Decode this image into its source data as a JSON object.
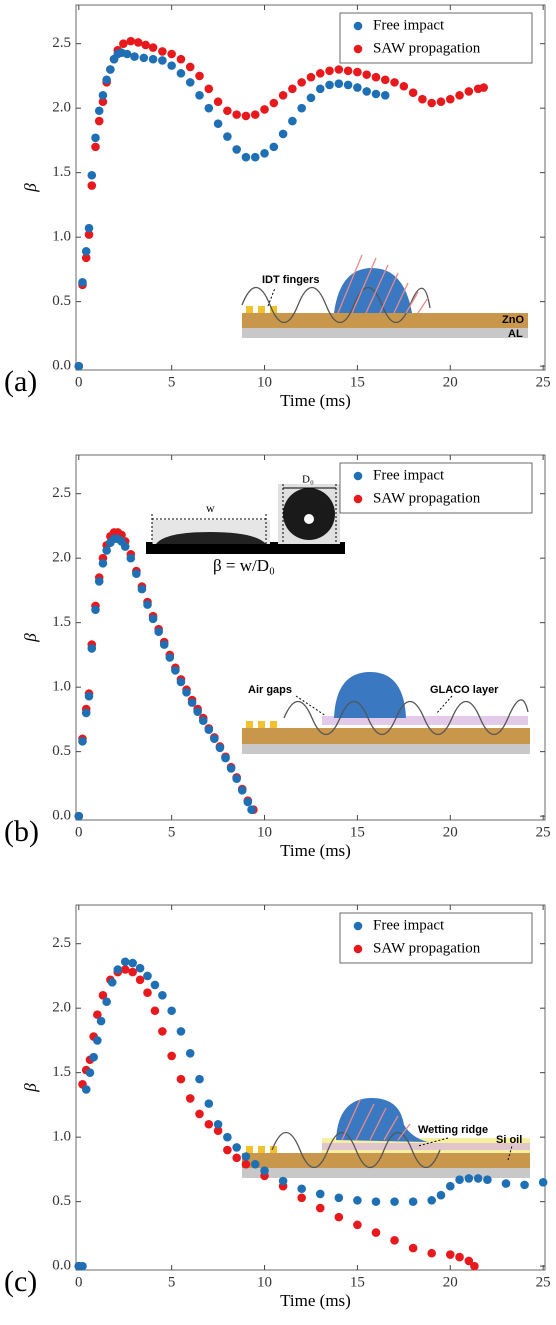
{
  "chart_data": [
    {
      "type": "scatter",
      "panel_label": "(a)",
      "x_label": "Time (ms)",
      "y_label": "β",
      "xlim": [
        -0.15,
        25.1
      ],
      "ylim": [
        -0.03,
        2.8
      ],
      "xticks": [
        0,
        5,
        10,
        15,
        20,
        25
      ],
      "yticks": [
        {
          "value": 0,
          "label": "0.0"
        },
        0.5,
        {
          "value": 1,
          "label": "1.0"
        },
        1.5,
        {
          "value": 2,
          "label": "2.0"
        },
        2.5
      ],
      "legend": "upper right",
      "annotations": [
        "IDT fingers",
        "ZnO",
        "AL"
      ],
      "series": [
        {
          "name": "Free impact",
          "color": "#1f6fb4",
          "x": [
            0,
            0.2,
            0.4,
            0.55,
            0.7,
            0.9,
            1.1,
            1.3,
            1.5,
            1.7,
            1.9,
            2.1,
            2.3,
            2.6,
            3,
            3.5,
            4,
            4.5,
            5,
            5.5,
            6,
            6.5,
            7,
            7.5,
            8,
            8.5,
            9,
            9.5,
            10,
            10.5,
            11,
            11.5,
            12,
            12.5,
            13,
            13.5,
            14,
            14.5,
            15,
            15.5,
            16,
            16.5
          ],
          "values": [
            0,
            0.65,
            0.89,
            1.07,
            1.48,
            1.77,
            1.98,
            2.1,
            2.22,
            2.3,
            2.38,
            2.42,
            2.43,
            2.42,
            2.4,
            2.39,
            2.38,
            2.37,
            2.33,
            2.27,
            2.2,
            2.1,
            2.0,
            1.88,
            1.78,
            1.68,
            1.62,
            1.62,
            1.65,
            1.7,
            1.8,
            1.9,
            2.0,
            2.08,
            2.15,
            2.18,
            2.19,
            2.18,
            2.16,
            2.13,
            2.11,
            2.1
          ]
        },
        {
          "name": "SAW propagation",
          "color": "#e8191c",
          "x": [
            0,
            0.2,
            0.4,
            0.55,
            0.7,
            0.9,
            1.1,
            1.3,
            1.5,
            1.7,
            1.9,
            2.1,
            2.4,
            2.8,
            3.2,
            3.6,
            4,
            4.5,
            5,
            5.5,
            6,
            6.5,
            7,
            7.5,
            8,
            8.5,
            9,
            9.5,
            10,
            10.5,
            11,
            11.5,
            12,
            12.5,
            13,
            13.5,
            14,
            14.5,
            15,
            15.5,
            16,
            16.5,
            17,
            17.5,
            18,
            18.5,
            19,
            19.5,
            20,
            20.5,
            21,
            21.5,
            21.8
          ],
          "values": [
            0,
            0.63,
            0.84,
            1.02,
            1.4,
            1.7,
            1.9,
            2.05,
            2.2,
            2.3,
            2.38,
            2.45,
            2.5,
            2.52,
            2.51,
            2.49,
            2.47,
            2.44,
            2.42,
            2.38,
            2.32,
            2.25,
            2.15,
            2.05,
            1.98,
            1.95,
            1.94,
            1.95,
            1.99,
            2.04,
            2.1,
            2.15,
            2.2,
            2.24,
            2.27,
            2.29,
            2.3,
            2.29,
            2.28,
            2.26,
            2.24,
            2.22,
            2.2,
            2.17,
            2.12,
            2.07,
            2.04,
            2.05,
            2.07,
            2.1,
            2.13,
            2.15,
            2.16
          ]
        }
      ]
    },
    {
      "type": "scatter",
      "panel_label": "(b)",
      "x_label": "Time (ms)",
      "y_label": "β",
      "xlim": [
        -0.15,
        25.1
      ],
      "ylim": [
        -0.03,
        2.8
      ],
      "xticks": [
        0,
        5,
        10,
        15,
        20,
        25
      ],
      "yticks": [
        {
          "value": 0,
          "label": "0.0"
        },
        0.5,
        {
          "value": 1,
          "label": "1.0"
        },
        1.5,
        {
          "value": 2,
          "label": "2.0"
        },
        2.5
      ],
      "legend": "upper right",
      "annotations": [
        "w",
        "D₀",
        "β = w/D₀",
        "Air gaps",
        "GLACO layer"
      ],
      "series": [
        {
          "name": "Free impact",
          "color": "#1f6fb4",
          "x": [
            0,
            0.2,
            0.4,
            0.55,
            0.7,
            0.9,
            1.1,
            1.3,
            1.5,
            1.7,
            1.9,
            2.1,
            2.3,
            2.5,
            2.8,
            3.1,
            3.4,
            3.7,
            4,
            4.3,
            4.6,
            4.9,
            5.2,
            5.5,
            5.8,
            6.1,
            6.4,
            6.7,
            7,
            7.3,
            7.6,
            7.9,
            8.2,
            8.5,
            8.8,
            9.1,
            9.3
          ],
          "values": [
            0,
            0.58,
            0.8,
            0.93,
            1.3,
            1.6,
            1.82,
            1.96,
            2.06,
            2.12,
            2.15,
            2.15,
            2.13,
            2.09,
            2.0,
            1.88,
            1.76,
            1.64,
            1.53,
            1.43,
            1.33,
            1.23,
            1.13,
            1.04,
            0.96,
            0.88,
            0.81,
            0.74,
            0.67,
            0.6,
            0.53,
            0.45,
            0.37,
            0.29,
            0.2,
            0.11,
            0.05
          ]
        },
        {
          "name": "SAW propagation",
          "color": "#e8191c",
          "x": [
            0,
            0.2,
            0.4,
            0.55,
            0.7,
            0.9,
            1.1,
            1.3,
            1.5,
            1.7,
            1.9,
            2.1,
            2.3,
            2.5,
            2.8,
            3.1,
            3.4,
            3.7,
            4,
            4.3,
            4.6,
            4.9,
            5.2,
            5.5,
            5.8,
            6.1,
            6.4,
            6.7,
            7,
            7.3,
            7.6,
            7.9,
            8.2,
            8.5,
            8.8,
            9.1,
            9.4
          ],
          "values": [
            0,
            0.6,
            0.83,
            0.95,
            1.33,
            1.63,
            1.85,
            2.0,
            2.1,
            2.17,
            2.2,
            2.2,
            2.18,
            2.13,
            2.03,
            1.9,
            1.78,
            1.66,
            1.55,
            1.45,
            1.35,
            1.25,
            1.15,
            1.06,
            0.98,
            0.9,
            0.83,
            0.76,
            0.68,
            0.61,
            0.54,
            0.46,
            0.38,
            0.3,
            0.21,
            0.12,
            0.05
          ]
        }
      ]
    },
    {
      "type": "scatter",
      "panel_label": "(c)",
      "x_label": "Time (ms)",
      "y_label": "β",
      "xlim": [
        -0.15,
        25.1
      ],
      "ylim": [
        -0.03,
        2.8
      ],
      "xticks": [
        0,
        5,
        10,
        15,
        20,
        25
      ],
      "yticks": [
        {
          "value": 0,
          "label": "0.0"
        },
        0.5,
        {
          "value": 1,
          "label": "1.0"
        },
        1.5,
        {
          "value": 2,
          "label": "2.0"
        },
        2.5
      ],
      "legend": "upper right",
      "annotations": [
        "Wetting ridge",
        "Si oil"
      ],
      "series": [
        {
          "name": "Free impact",
          "color": "#1f6fb4",
          "x": [
            0,
            0.2,
            0.4,
            0.6,
            0.8,
            1,
            1.2,
            1.5,
            1.8,
            2.1,
            2.5,
            2.9,
            3.3,
            3.7,
            4.1,
            4.5,
            5,
            5.5,
            6,
            6.5,
            7,
            7.5,
            8,
            8.5,
            9,
            9.5,
            10,
            11,
            12,
            13,
            14,
            15,
            16,
            17,
            18,
            19,
            19.5,
            20,
            20.5,
            21,
            21.5,
            22,
            23,
            24,
            25
          ],
          "values": [
            0,
            0,
            1.37,
            1.5,
            1.62,
            1.75,
            1.9,
            2.05,
            2.2,
            2.3,
            2.36,
            2.35,
            2.31,
            2.25,
            2.18,
            2.1,
            1.98,
            1.82,
            1.65,
            1.45,
            1.26,
            1.1,
            1.0,
            0.92,
            0.85,
            0.79,
            0.74,
            0.66,
            0.6,
            0.56,
            0.53,
            0.51,
            0.5,
            0.5,
            0.5,
            0.51,
            0.55,
            0.62,
            0.67,
            0.68,
            0.68,
            0.67,
            0.64,
            0.63,
            0.65
          ]
        },
        {
          "name": "SAW propagation",
          "color": "#e8191c",
          "x": [
            0,
            0.2,
            0.4,
            0.6,
            0.8,
            1,
            1.3,
            1.7,
            2.1,
            2.5,
            2.9,
            3.3,
            3.7,
            4.1,
            4.5,
            5,
            5.5,
            6,
            6.5,
            7,
            7.5,
            8,
            8.5,
            9,
            10,
            11,
            12,
            13,
            14,
            15,
            16,
            17,
            18,
            19,
            20,
            20.5,
            21,
            21.3
          ],
          "values": [
            0,
            1.41,
            1.52,
            1.6,
            1.78,
            1.95,
            2.1,
            2.22,
            2.28,
            2.3,
            2.28,
            2.22,
            2.12,
            1.98,
            1.82,
            1.63,
            1.45,
            1.3,
            1.18,
            1.1,
            1.05,
            0.9,
            0.84,
            0.79,
            0.7,
            0.62,
            0.53,
            0.45,
            0.38,
            0.32,
            0.26,
            0.2,
            0.14,
            0.1,
            0.09,
            0.07,
            0.04,
            0
          ]
        }
      ]
    }
  ]
}
